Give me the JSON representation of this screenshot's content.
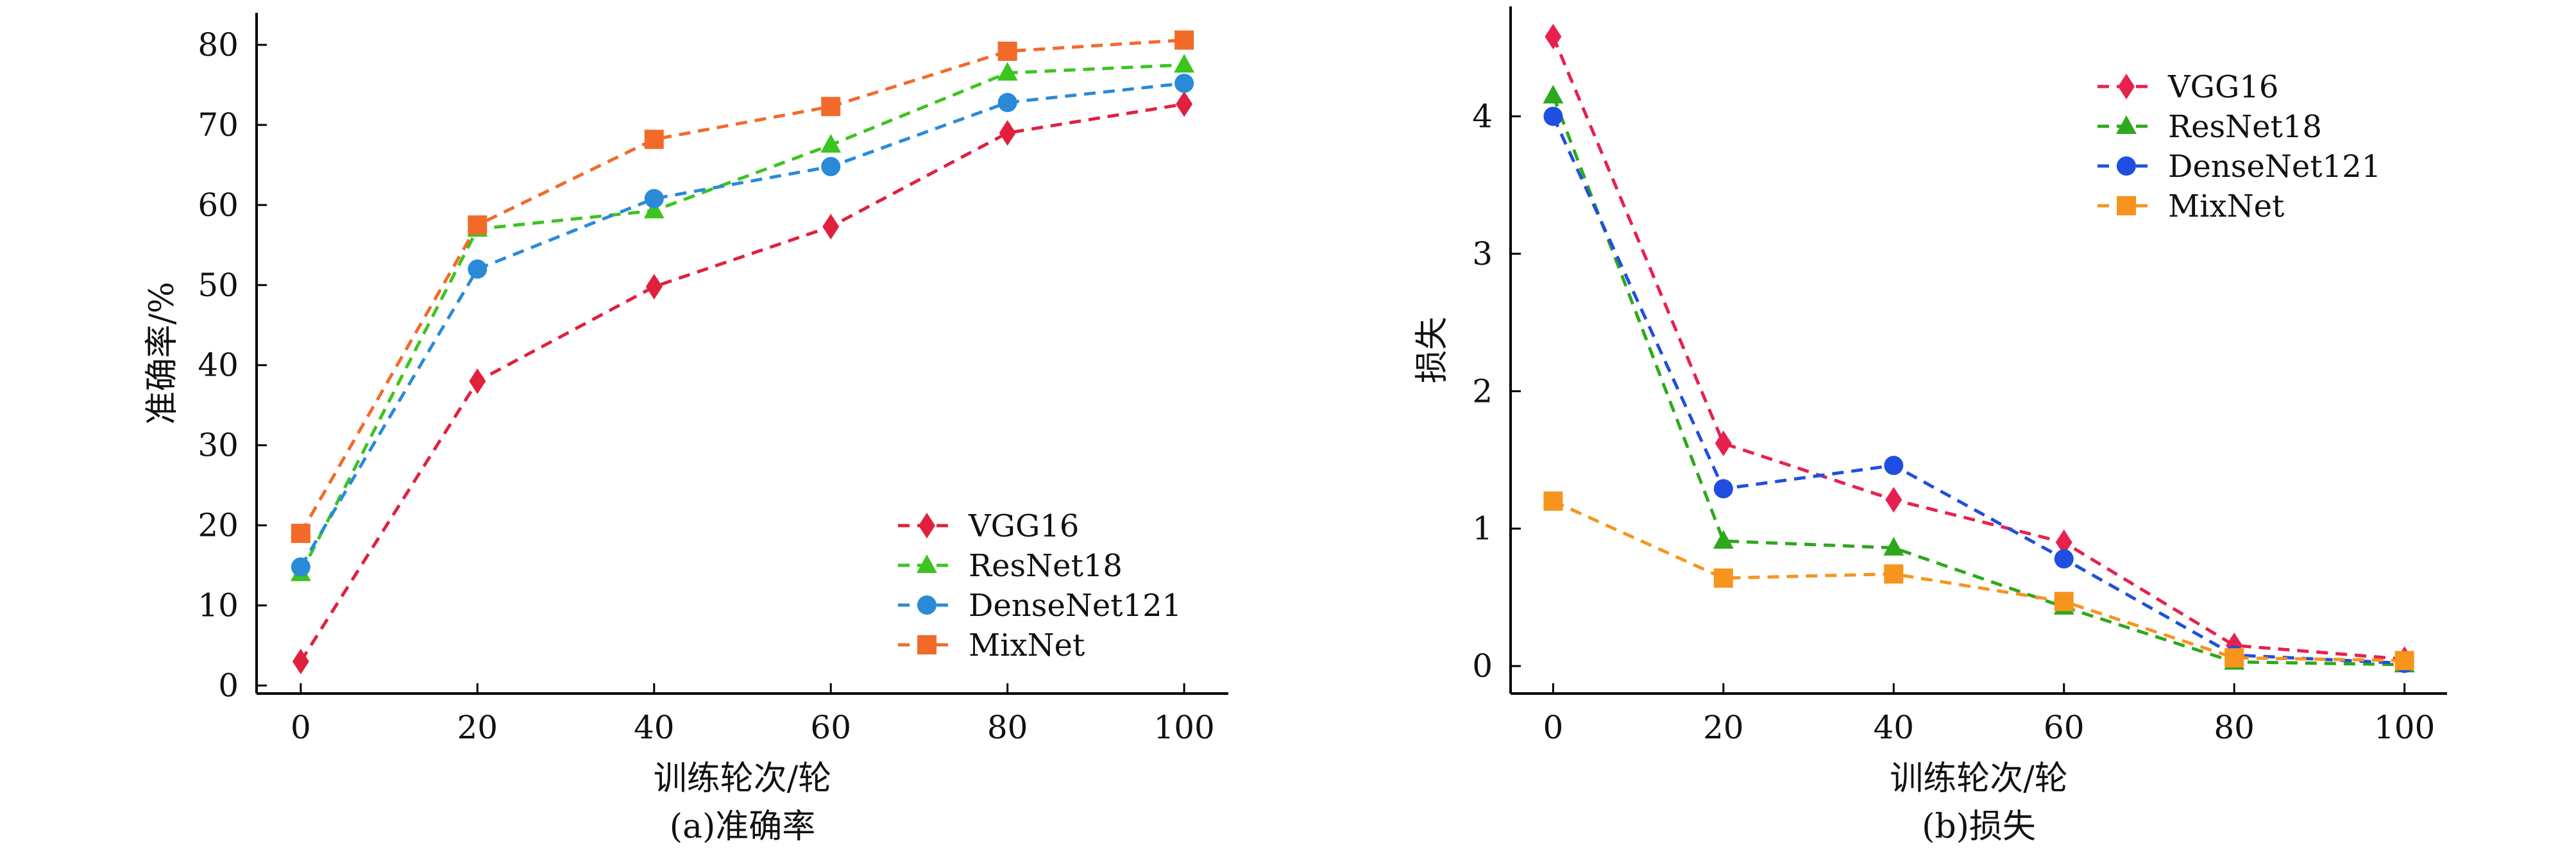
{
  "chart_data": [
    {
      "type": "line",
      "caption": "(a)准确率",
      "xlabel": "训练轮次/轮",
      "ylabel": "准确率/%",
      "x": [
        0,
        20,
        40,
        60,
        80,
        100
      ],
      "xlim": [
        -5,
        105
      ],
      "ylim": [
        -1,
        84
      ],
      "xticks": [
        0,
        20,
        40,
        60,
        80,
        100
      ],
      "yticks": [
        0,
        10,
        20,
        30,
        40,
        50,
        60,
        70,
        80
      ],
      "legend_position": "bottom-right",
      "series": [
        {
          "name": "VGG16",
          "color": "#e0203e",
          "marker": "diamond",
          "values": [
            3.0,
            38.0,
            49.8,
            57.3,
            69.0,
            72.6
          ]
        },
        {
          "name": "ResNet18",
          "color": "#3cc41f",
          "marker": "triangle",
          "values": [
            14.0,
            57.0,
            59.3,
            67.5,
            76.5,
            77.5
          ]
        },
        {
          "name": "DenseNet121",
          "color": "#2a8ad8",
          "marker": "circle",
          "values": [
            14.8,
            52.0,
            60.8,
            64.8,
            72.8,
            75.2
          ]
        },
        {
          "name": "MixNet",
          "color": "#f26a2a",
          "marker": "square",
          "values": [
            19.0,
            57.5,
            68.2,
            72.3,
            79.2,
            80.6
          ]
        }
      ]
    },
    {
      "type": "line",
      "caption": "(b)损失",
      "xlabel": "训练轮次/轮",
      "ylabel": "损失",
      "x": [
        0,
        20,
        40,
        60,
        80,
        100
      ],
      "xlim": [
        -5,
        105
      ],
      "ylim": [
        -0.2,
        4.8
      ],
      "xticks": [
        0,
        20,
        40,
        60,
        80,
        100
      ],
      "yticks": [
        0,
        1,
        2,
        3,
        4
      ],
      "legend_position": "top-right",
      "series": [
        {
          "name": "VGG16",
          "color": "#e8204e",
          "marker": "diamond",
          "values": [
            4.58,
            1.62,
            1.21,
            0.9,
            0.15,
            0.05
          ]
        },
        {
          "name": "ResNet18",
          "color": "#2ea81c",
          "marker": "triangle",
          "values": [
            4.15,
            0.91,
            0.86,
            0.43,
            0.03,
            0.01
          ]
        },
        {
          "name": "DenseNet121",
          "color": "#1f4fe0",
          "marker": "circle",
          "values": [
            4.0,
            1.29,
            1.46,
            0.78,
            0.08,
            0.02
          ]
        },
        {
          "name": "MixNet",
          "color": "#f7941e",
          "marker": "square",
          "values": [
            1.2,
            0.64,
            0.67,
            0.47,
            0.06,
            0.04
          ]
        }
      ]
    }
  ]
}
